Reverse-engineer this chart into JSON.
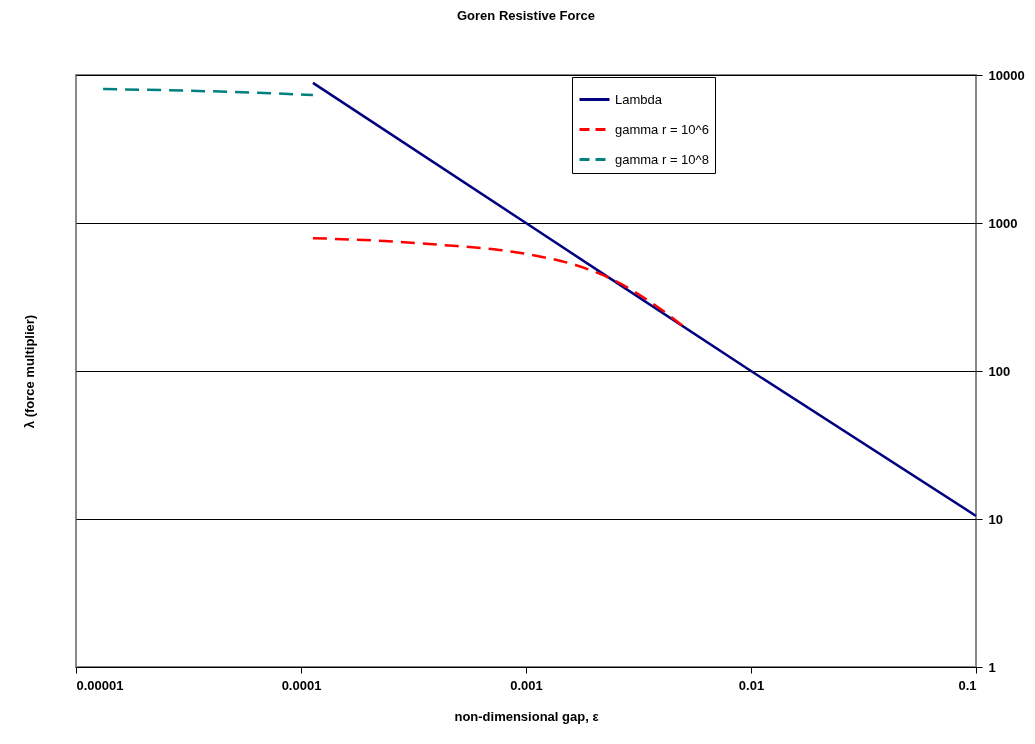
{
  "chart_data": {
    "type": "line",
    "title": "Goren Resistive Force",
    "xlabel": "non-dimensional gap, ε",
    "ylabel": "λ (force multiplier)",
    "log": "xy",
    "xlim": [
      1e-05,
      0.1
    ],
    "xticks": [
      {
        "value": 1e-05,
        "label": "0.00001"
      },
      0.0001,
      0.001,
      0.01,
      0.1
    ],
    "ylim": [
      1,
      10000
    ],
    "yticks": [
      1,
      10,
      100,
      1000,
      10000
    ],
    "grid": "y",
    "legend": "top right",
    "series": [
      {
        "name": "Lambda",
        "color": "#000080",
        "line_style": "solid",
        "x": [
          0.000113,
          0.001,
          0.01,
          0.1
        ],
        "values": [
          8850,
          1000,
          100,
          10.5
        ]
      },
      {
        "name": "gamma r = 10^6",
        "color": "#ff0000",
        "line_style": "dashed",
        "x": [
          0.000113,
          0.000236,
          0.000424,
          0.00076,
          0.00112,
          0.00166,
          0.00245,
          0.00363,
          0.005
        ],
        "values": [
          790,
          755,
          710,
          658,
          599,
          520,
          412,
          288,
          201
        ]
      },
      {
        "name": "gamma r = 10^8",
        "color": "#008080",
        "line_style": "dashed",
        "x": [
          1.32e-05,
          5e-05,
          0.000113
        ],
        "values": [
          8040,
          7680,
          7330
        ]
      }
    ]
  }
}
